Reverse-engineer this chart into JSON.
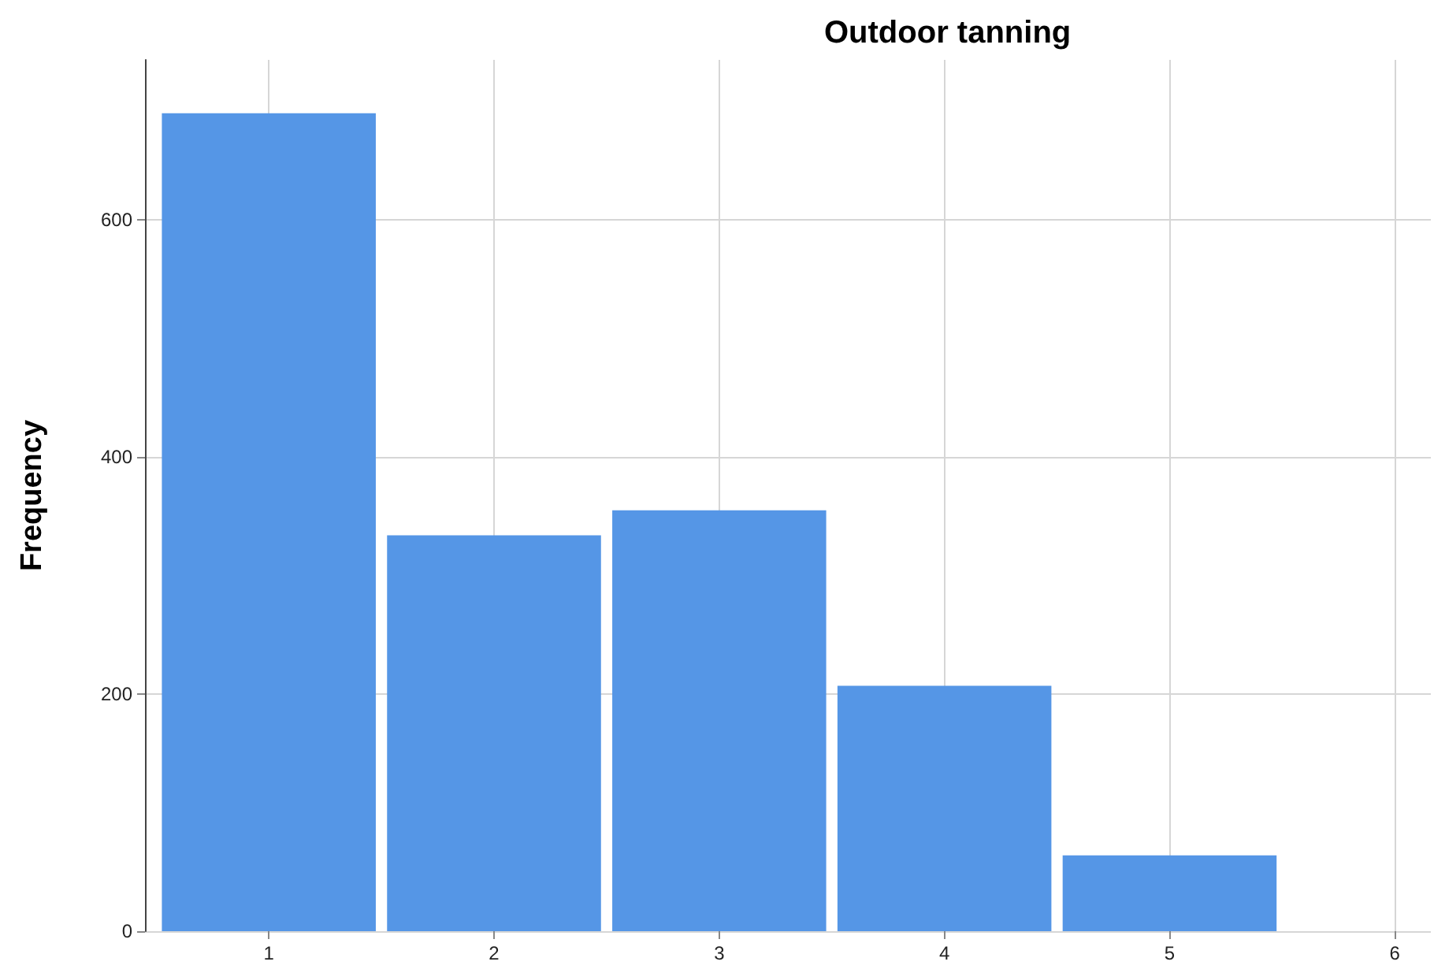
{
  "chart_data": {
    "type": "bar",
    "title": "Outdoor tanning",
    "ylabel": "Frequency",
    "x": [
      1,
      2,
      3,
      4,
      5
    ],
    "values": [
      690,
      334,
      355,
      207,
      64
    ],
    "color": "#5596e6",
    "xlim": [
      0.45,
      6.16
    ],
    "xticks": [
      1,
      2,
      3,
      4,
      5,
      6
    ],
    "ylim": [
      0,
      735
    ],
    "yticks": [
      0,
      200,
      400,
      600
    ],
    "grid": true
  }
}
